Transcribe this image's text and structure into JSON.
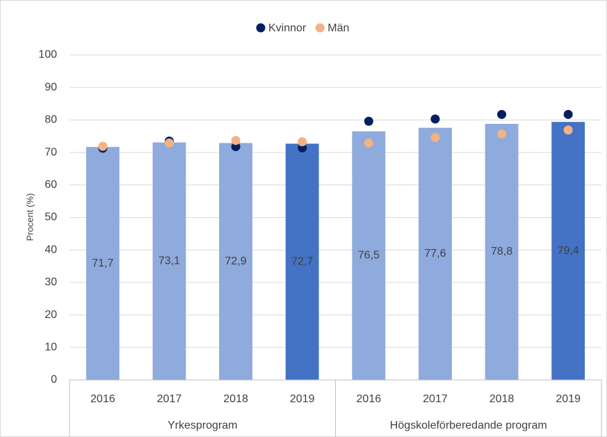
{
  "chart_data": {
    "type": "bar",
    "y_label": "Procent (%)",
    "groups": [
      {
        "label": "Yrkesprogram",
        "categories": [
          "2016",
          "2017",
          "2018",
          "2019"
        ]
      },
      {
        "label": "Högskoleförberedande program",
        "categories": [
          "2016",
          "2017",
          "2018",
          "2019"
        ]
      }
    ],
    "values": [
      71.7,
      73.1,
      72.9,
      72.7,
      76.5,
      77.6,
      78.8,
      79.4
    ],
    "value_labels": [
      "71,7",
      "73,1",
      "72,9",
      "72,7",
      "76,5",
      "77,6",
      "78,8",
      "79,4"
    ],
    "colors": [
      "#8faadc",
      "#8faadc",
      "#8faadc",
      "#4472c4",
      "#8faadc",
      "#8faadc",
      "#8faadc",
      "#4472c4"
    ],
    "series": [
      {
        "name": "Kvinnor",
        "color": "#002060",
        "values": [
          71.3,
          73.5,
          71.8,
          71.4,
          79.6,
          80.3,
          81.7,
          81.7
        ]
      },
      {
        "name": "Män",
        "color": "#f4b183",
        "values": [
          71.9,
          72.9,
          73.7,
          73.3,
          72.9,
          74.6,
          75.7,
          76.9
        ]
      }
    ],
    "ylim": [
      0,
      100
    ],
    "yticks": [
      0,
      10,
      20,
      30,
      40,
      50,
      60,
      70,
      80,
      90,
      100
    ],
    "grid": true
  }
}
